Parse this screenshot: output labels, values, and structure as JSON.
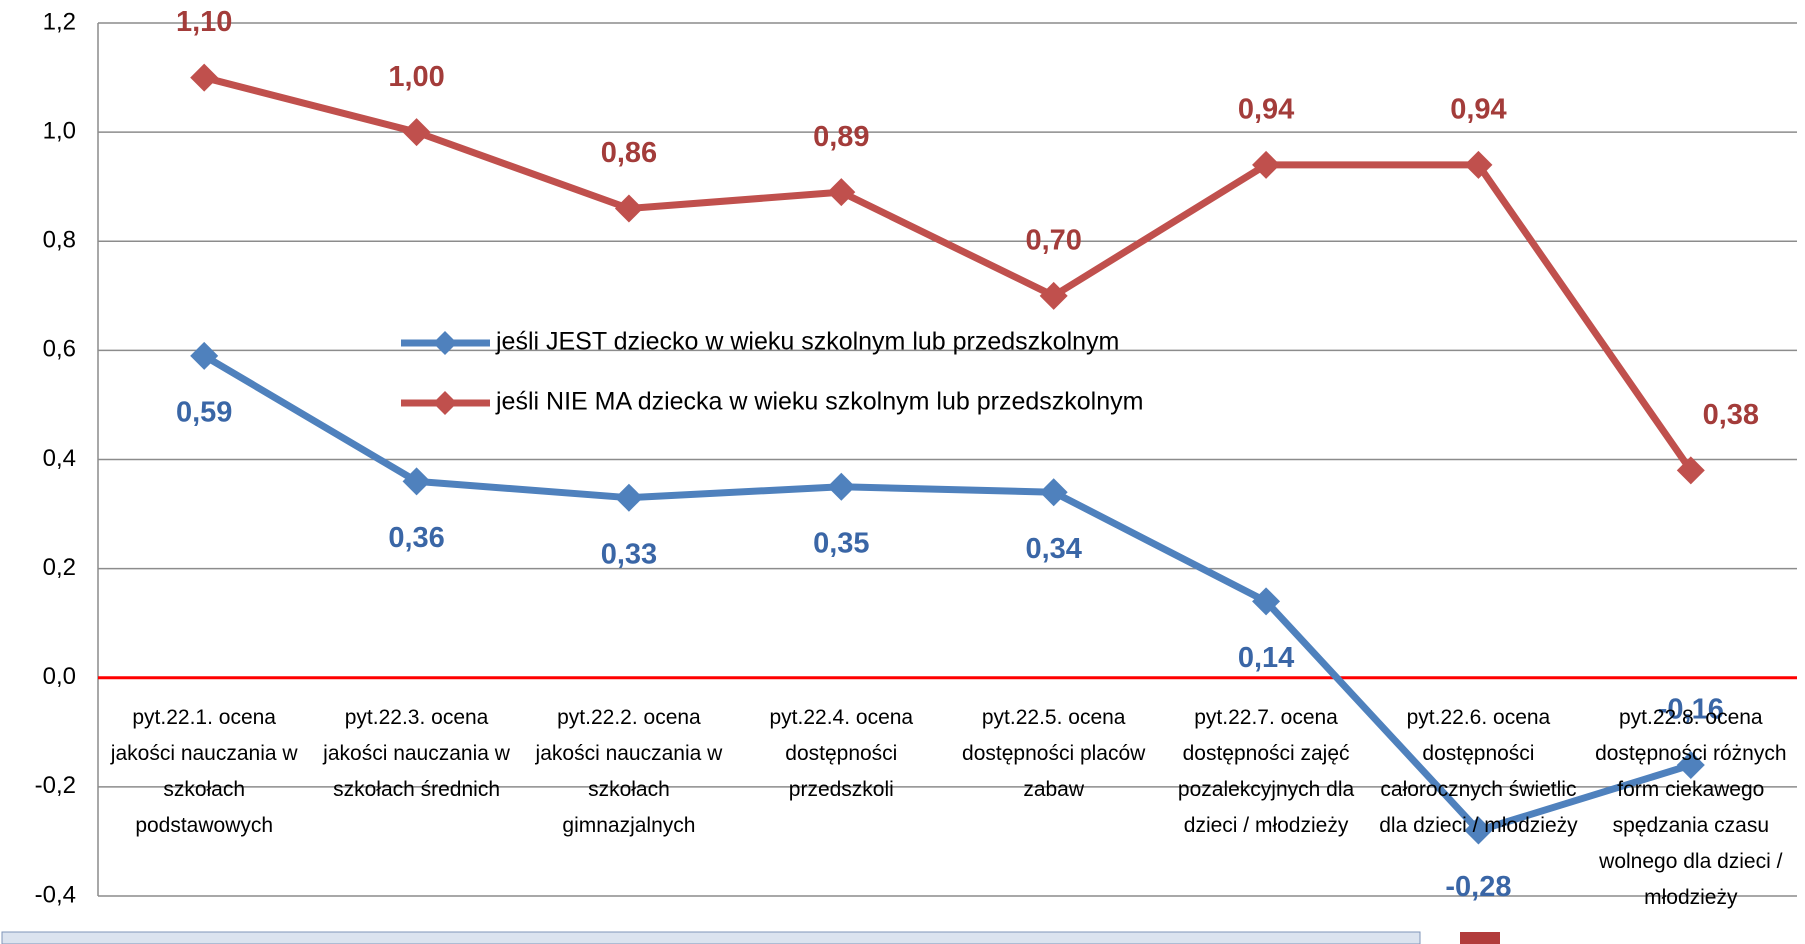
{
  "chart_data": {
    "type": "line",
    "categories": [
      "pyt.22.1. ocena jakości nauczania w szkołach podstawowych",
      "pyt.22.3. ocena jakości nauczania w szkołach średnich",
      "pyt.22.2. ocena jakości nauczania w szkołach gimnazjalnych",
      "pyt.22.4. ocena dostępności przedszkoli",
      "pyt.22.5. ocena dostępności placów zabaw",
      "pyt.22.7. ocena dostępności zajęć pozalekcyjnych dla dzieci / młodzieży",
      "pyt.22.6. ocena dostępności całorocznych świetlic dla dzieci / młodzieży",
      "pyt.22.8. ocena dostępności różnych form ciekawego spędzania czasu wolnego dla dzieci / młodzieży"
    ],
    "series": [
      {
        "name": "jeśli JEST dziecko w wieku szkolnym lub przedszkolnym",
        "color": "#4f81bd",
        "values": [
          0.59,
          0.36,
          0.33,
          0.35,
          0.34,
          0.14,
          -0.28,
          -0.16
        ],
        "value_labels": [
          "0,59",
          "0,36",
          "0,33",
          "0,35",
          "0,34",
          "0,14",
          "-0,28",
          "-0,16"
        ]
      },
      {
        "name": "jeśli NIE MA dziecka w wieku szkolnym lub przedszkolnym",
        "color": "#c0504d",
        "values": [
          1.1,
          1.0,
          0.86,
          0.89,
          0.7,
          0.94,
          0.94,
          0.38
        ],
        "value_labels": [
          "1,10",
          "1,00",
          "0,86",
          "0,89",
          "0,70",
          "0,94",
          "0,94",
          "0,38"
        ]
      }
    ],
    "ylim": [
      -0.4,
      1.2
    ],
    "yticks": [
      {
        "value": -0.4,
        "label": "-0,4"
      },
      {
        "value": -0.2,
        "label": "-0,2"
      },
      {
        "value": 0,
        "label": "0,0"
      },
      {
        "value": 0.2,
        "label": "0,2"
      },
      {
        "value": 0.4,
        "label": "0,4"
      },
      {
        "value": 0.6,
        "label": "0,6"
      },
      {
        "value": 0.8,
        "label": "0,8"
      },
      {
        "value": 1.0,
        "label": "1,0"
      },
      {
        "value": 1.2,
        "label": "1,2"
      }
    ],
    "grid": true,
    "zero_line_color": "#ff0000"
  }
}
